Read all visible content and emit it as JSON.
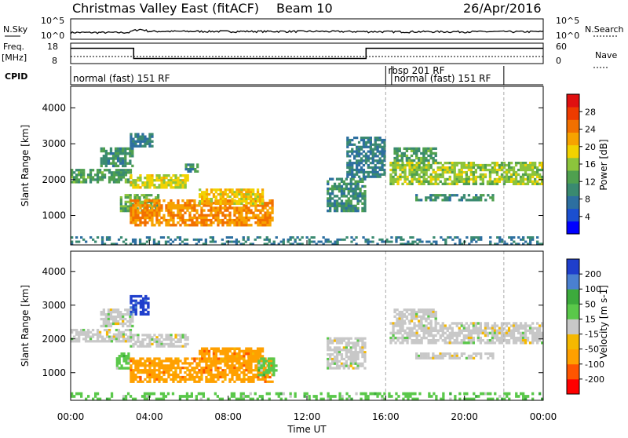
{
  "header": {
    "title": "Christmas Valley East (fitACF)",
    "beam": "Beam 10",
    "date": "26/Apr/2016"
  },
  "aux_panel": {
    "nsky_label": "N.Sky",
    "nsky_ticks": [
      "10^5",
      "10^0"
    ],
    "nsearch_label": "N.Search",
    "nsearch_ticks": [
      "10^5",
      "10^0"
    ],
    "freq_label_1": "Freq.",
    "freq_label_2": "[MHz]",
    "freq_ticks": [
      "18",
      "8"
    ],
    "nave_label": "Nave",
    "nave_ticks": [
      "60",
      "0"
    ],
    "cpid_label": "CPID"
  },
  "cpid_segments": [
    {
      "label": "normal (fast) 151 RF",
      "start_h": 0,
      "end_h": 16
    },
    {
      "label": "rbsp 201 RF",
      "start_h": 16,
      "end_h": 22
    },
    {
      "label": "normal (fast) 151 RF",
      "start_h": 16.3,
      "end_h": 22
    }
  ],
  "x_axis": {
    "label": "Time UT",
    "ticks": [
      "00:00",
      "04:00",
      "08:00",
      "12:00",
      "16:00",
      "20:00",
      "00:00"
    ]
  },
  "y_axis": {
    "label": "Slant Range [km]",
    "ticks": [
      "4000",
      "3000",
      "2000",
      "1000"
    ]
  },
  "power_scale": {
    "label": "Power [dB]",
    "ticks": [
      "28",
      "24",
      "20",
      "16",
      "12",
      "8",
      "4"
    ],
    "colors": [
      "#0000ff",
      "#1b4fd0",
      "#2d6fa0",
      "#3a8a70",
      "#4fa04f",
      "#8cc43c",
      "#f2d200",
      "#f7a300",
      "#f27000",
      "#ee3b00",
      "#e01010"
    ]
  },
  "velocity_scale": {
    "label": "Velocity [m s-1]",
    "ticks": [
      "200",
      "100",
      "50",
      "15",
      "-15",
      "-50",
      "-100",
      "-200"
    ],
    "colors": [
      "#ff0000",
      "#ff5500",
      "#ffa000",
      "#f5b800",
      "#c8c8c8",
      "#5ac84a",
      "#3caa3c",
      "#4a80d0",
      "#1f3fcc"
    ]
  },
  "chart_data": [
    {
      "type": "line",
      "title": "N.Sky / N.Search",
      "x": [
        0,
        3,
        3.5,
        4,
        8,
        12,
        16,
        20,
        24
      ],
      "series": [
        {
          "name": "N.Sky",
          "values": [
            30,
            30,
            200,
            60,
            60,
            60,
            50,
            50,
            50
          ]
        }
      ],
      "ylim": [
        1,
        100000
      ],
      "yscale": "log"
    },
    {
      "type": "line",
      "title": "Freq. / Nave",
      "x": [
        0,
        3.2,
        3.2,
        15,
        15,
        24
      ],
      "series": [
        {
          "name": "Freq. [MHz]",
          "values": [
            15.5,
            15.5,
            10.5,
            10.5,
            15.5,
            15.5
          ]
        }
      ],
      "ylim": [
        8,
        18
      ]
    },
    {
      "type": "heatmap",
      "title": "Power [dB]",
      "xlabel": "Time UT",
      "ylabel": "Slant Range [km]",
      "xlim": [
        0,
        24
      ],
      "ylim": [
        180,
        4600
      ],
      "regions": [
        {
          "t0": 0.0,
          "t1": 3.1,
          "r0": 1900,
          "r1": 2300,
          "value": 12
        },
        {
          "t0": 1.5,
          "t1": 3.2,
          "r0": 2350,
          "r1": 2900,
          "value": 10
        },
        {
          "t0": 3.0,
          "t1": 4.2,
          "r0": 2900,
          "r1": 3300,
          "value": 8
        },
        {
          "t0": 2.5,
          "t1": 4.5,
          "r0": 1100,
          "r1": 1600,
          "value": 14
        },
        {
          "t0": 3.0,
          "t1": 10.3,
          "r0": 700,
          "r1": 1450,
          "value": 24
        },
        {
          "t0": 6.5,
          "t1": 9.8,
          "r0": 1300,
          "r1": 1750,
          "value": 20
        },
        {
          "t0": 3.0,
          "t1": 6.0,
          "r0": 1750,
          "r1": 2150,
          "value": 18
        },
        {
          "t0": 5.8,
          "t1": 6.5,
          "r0": 2200,
          "r1": 2450,
          "value": 10
        },
        {
          "t0": 13.0,
          "t1": 15.0,
          "r0": 1100,
          "r1": 2050,
          "value": 10
        },
        {
          "t0": 14.0,
          "t1": 16.0,
          "r0": 2050,
          "r1": 3200,
          "value": 8
        },
        {
          "t0": 16.2,
          "t1": 24.0,
          "r0": 1850,
          "r1": 2500,
          "value": 16
        },
        {
          "t0": 16.4,
          "t1": 18.6,
          "r0": 2500,
          "r1": 2900,
          "value": 12
        },
        {
          "t0": 17.5,
          "t1": 21.5,
          "r0": 1400,
          "r1": 1600,
          "value": 10
        },
        {
          "t0": 0.0,
          "t1": 24.0,
          "r0": 180,
          "r1": 420,
          "value": 8
        }
      ]
    },
    {
      "type": "heatmap",
      "title": "Velocity [m s-1]",
      "xlabel": "Time UT",
      "ylabel": "Slant Range [km]",
      "xlim": [
        0,
        24
      ],
      "ylim": [
        180,
        4600
      ],
      "regions": [
        {
          "t0": 0.0,
          "t1": 3.1,
          "r0": 1900,
          "r1": 2300,
          "value": 0
        },
        {
          "t0": 1.5,
          "t1": 3.2,
          "r0": 2350,
          "r1": 2900,
          "value": 0
        },
        {
          "t0": 3.0,
          "t1": 4.0,
          "r0": 2700,
          "r1": 3300,
          "value": 200
        },
        {
          "t0": 2.3,
          "t1": 3.0,
          "r0": 1100,
          "r1": 1600,
          "value": 30
        },
        {
          "t0": 3.0,
          "t1": 10.3,
          "r0": 700,
          "r1": 1450,
          "value": -40
        },
        {
          "t0": 6.5,
          "t1": 9.8,
          "r0": 1300,
          "r1": 1750,
          "value": -40
        },
        {
          "t0": 3.0,
          "t1": 6.0,
          "r0": 1750,
          "r1": 2150,
          "value": 0
        },
        {
          "t0": 9.5,
          "t1": 10.5,
          "r0": 900,
          "r1": 1450,
          "value": 30
        },
        {
          "t0": 13.0,
          "t1": 15.0,
          "r0": 1100,
          "r1": 2050,
          "value": 0
        },
        {
          "t0": 16.2,
          "t1": 24.0,
          "r0": 1850,
          "r1": 2500,
          "value": 0
        },
        {
          "t0": 16.4,
          "t1": 18.6,
          "r0": 2500,
          "r1": 2900,
          "value": 0
        },
        {
          "t0": 17.5,
          "t1": 21.5,
          "r0": 1400,
          "r1": 1600,
          "value": 0
        },
        {
          "t0": 0.0,
          "t1": 24.0,
          "r0": 180,
          "r1": 420,
          "value": 25
        }
      ]
    }
  ]
}
